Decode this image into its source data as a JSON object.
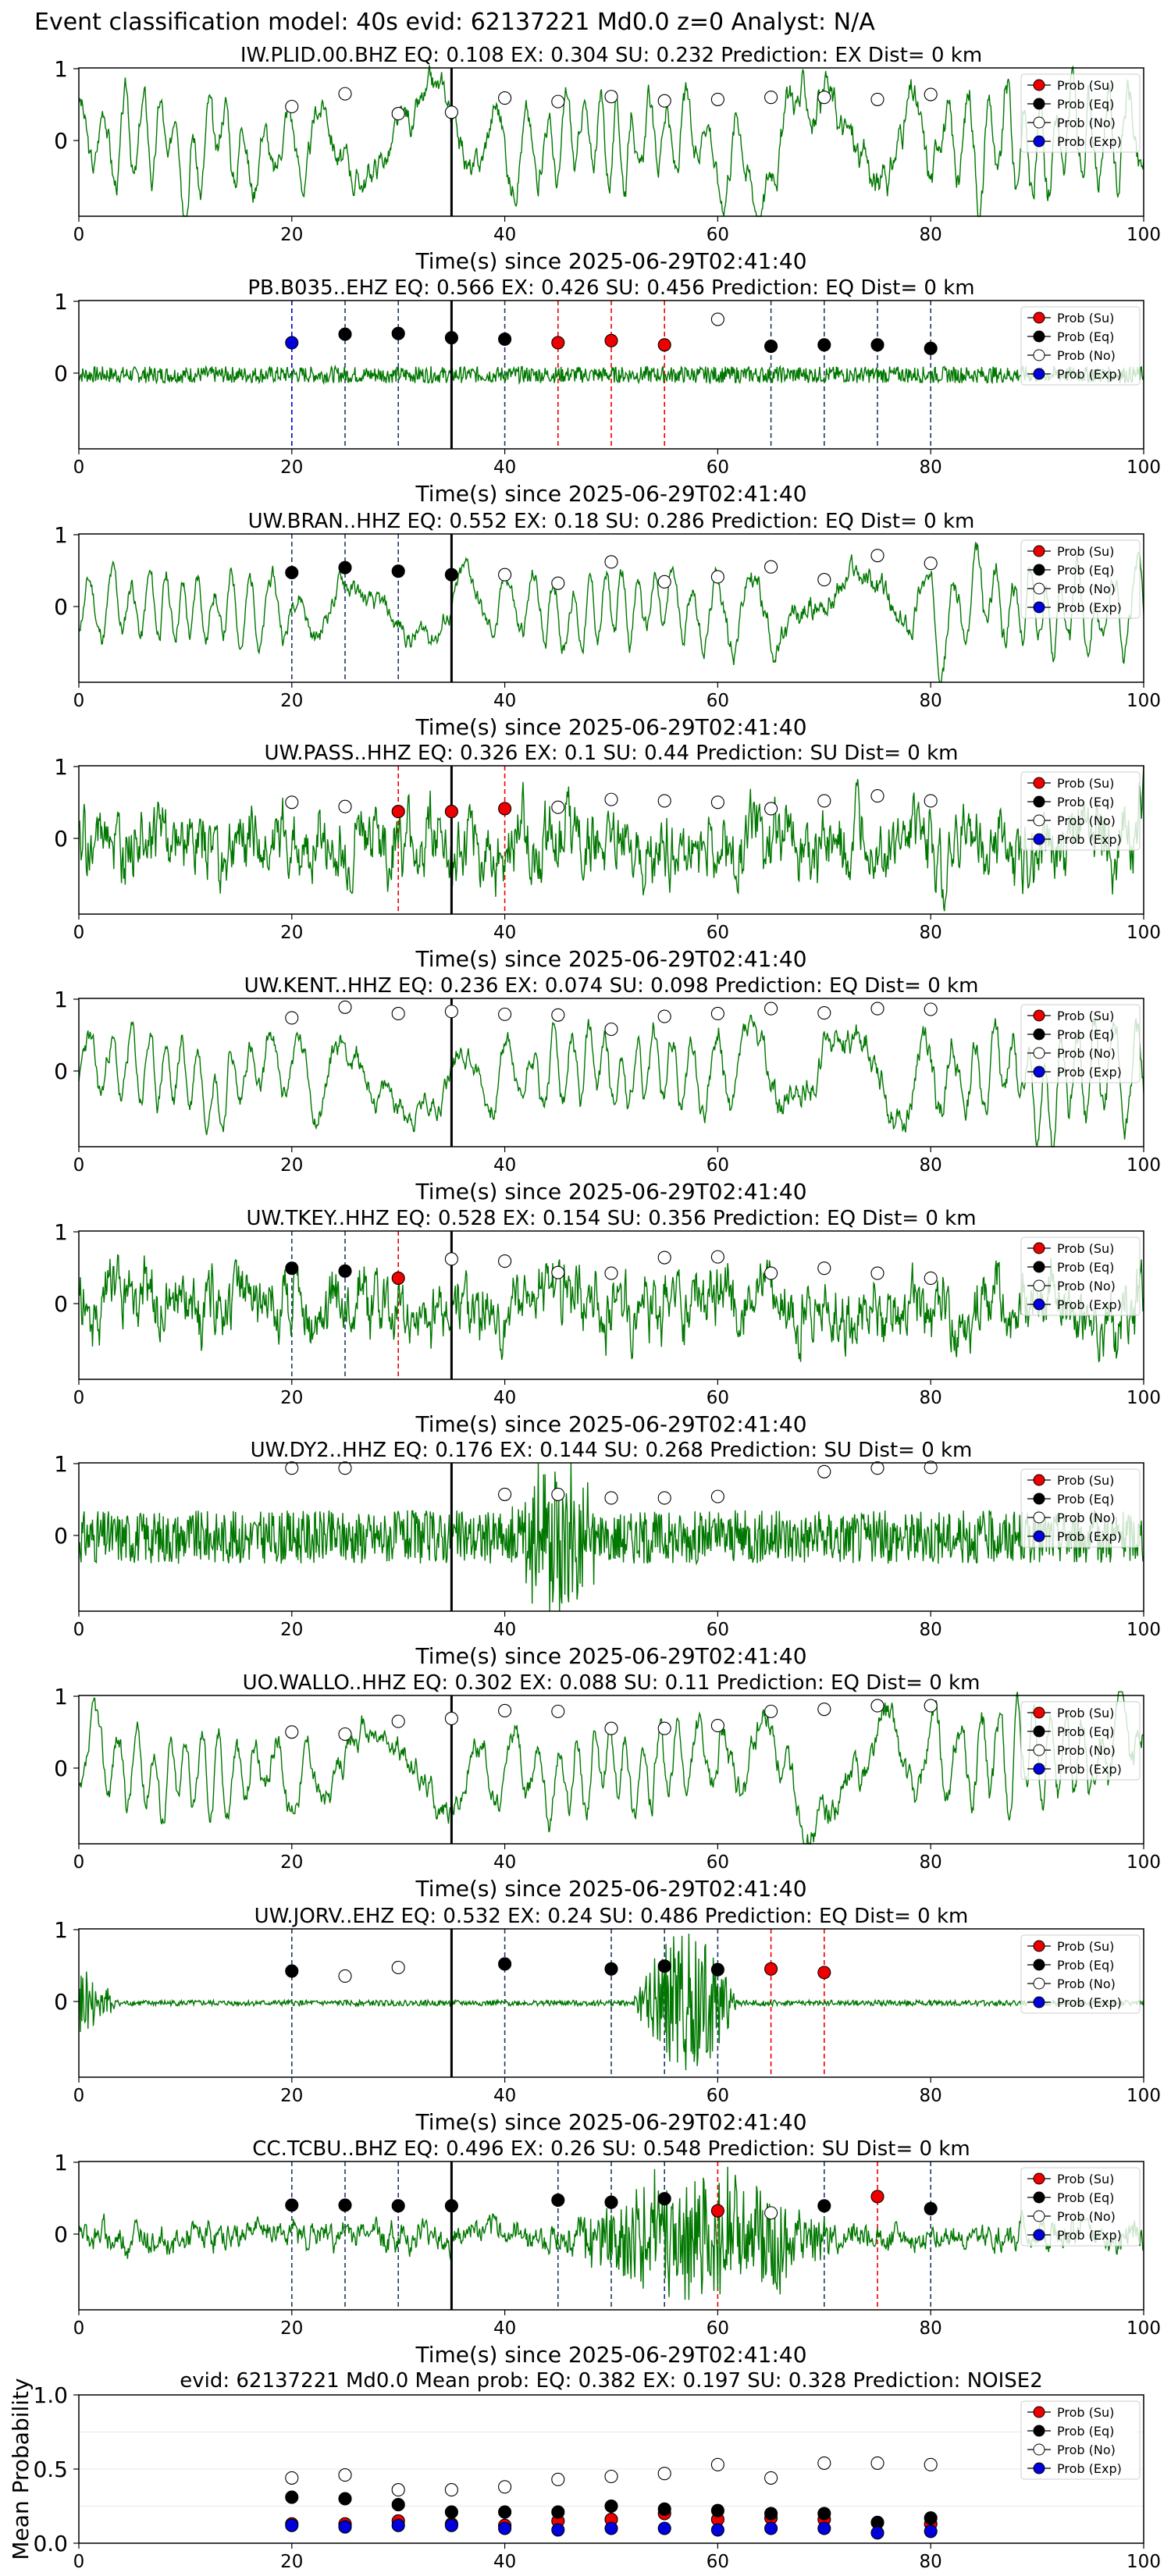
{
  "figure_title": "Event classification model: 40s evid: 62137221 Md0.0 z=0 Analyst: N/A",
  "xlabel": "Time(s) since 2025-06-29T02:41:40",
  "x_ticks": [
    "0",
    "20",
    "40",
    "60",
    "80",
    "100"
  ],
  "y_ticks": [
    "1",
    "0"
  ],
  "mean_ylabel": "Mean Probability",
  "mean_y_ticks": [
    "1.0",
    "0.5",
    "0.0"
  ],
  "legend": [
    {
      "label": "Prob (Su)",
      "color": "#ee0000",
      "stroke": "#000000"
    },
    {
      "label": "Prob (Eq)",
      "color": "#000000",
      "stroke": "#000000"
    },
    {
      "label": "Prob (No)",
      "color": "#ffffff",
      "stroke": "#000000"
    },
    {
      "label": "Prob (Exp)",
      "color": "#0000dd",
      "stroke": "#000000"
    }
  ],
  "colors": {
    "waveform": "#007700",
    "su_line": "#ee0000",
    "eq_line": "#1f3a66",
    "exp_line": "#0000cc",
    "onset": "#000000"
  },
  "chart_data": [
    {
      "type": "line",
      "title": "IW.PLID.00.BHZ   EQ: 0.108  EX: 0.304  SU: 0.232   Prediction: EX    Dist= 0 km",
      "xlim": [
        0,
        100
      ],
      "onset": 35,
      "style": "smooth",
      "amp": 0.8,
      "seed": 3,
      "points": [
        {
          "x": 20,
          "p": 0.5,
          "c": "No"
        },
        {
          "x": 25,
          "p": 0.68,
          "c": "No"
        },
        {
          "x": 30,
          "p": 0.4,
          "c": "No"
        },
        {
          "x": 35,
          "p": 0.42,
          "c": "No"
        },
        {
          "x": 40,
          "p": 0.62,
          "c": "No"
        },
        {
          "x": 45,
          "p": 0.57,
          "c": "No"
        },
        {
          "x": 50,
          "p": 0.64,
          "c": "No"
        },
        {
          "x": 55,
          "p": 0.58,
          "c": "No"
        },
        {
          "x": 60,
          "p": 0.6,
          "c": "No"
        },
        {
          "x": 65,
          "p": 0.63,
          "c": "No"
        },
        {
          "x": 70,
          "p": 0.63,
          "c": "No"
        },
        {
          "x": 75,
          "p": 0.6,
          "c": "No"
        },
        {
          "x": 80,
          "p": 0.67,
          "c": "No"
        }
      ]
    },
    {
      "type": "line",
      "title": "PB.B035..EHZ   EQ: 0.566  EX: 0.426  SU: 0.456   Prediction: EQ    Dist= 0 km",
      "xlim": [
        0,
        100
      ],
      "onset": 35,
      "style": "flat",
      "amp": 0.15,
      "seed": 7,
      "points": [
        {
          "x": 20,
          "p": 0.45,
          "c": "Exp"
        },
        {
          "x": 25,
          "p": 0.57,
          "c": "Eq"
        },
        {
          "x": 30,
          "p": 0.58,
          "c": "Eq"
        },
        {
          "x": 35,
          "p": 0.52,
          "c": "Eq"
        },
        {
          "x": 40,
          "p": 0.5,
          "c": "Eq"
        },
        {
          "x": 45,
          "p": 0.45,
          "c": "Su"
        },
        {
          "x": 50,
          "p": 0.48,
          "c": "Su"
        },
        {
          "x": 55,
          "p": 0.42,
          "c": "Su"
        },
        {
          "x": 60,
          "p": 0.78,
          "c": "No"
        },
        {
          "x": 65,
          "p": 0.4,
          "c": "Eq"
        },
        {
          "x": 70,
          "p": 0.42,
          "c": "Eq"
        },
        {
          "x": 75,
          "p": 0.42,
          "c": "Eq"
        },
        {
          "x": 80,
          "p": 0.37,
          "c": "Eq"
        }
      ]
    },
    {
      "type": "line",
      "title": "UW.BRAN..HHZ   EQ: 0.552  EX: 0.18  SU: 0.286   Prediction: EQ    Dist= 0 km",
      "xlim": [
        0,
        100
      ],
      "onset": 35,
      "style": "smooth",
      "amp": 0.6,
      "seed": 11,
      "points": [
        {
          "x": 20,
          "p": 0.5,
          "c": "Eq"
        },
        {
          "x": 25,
          "p": 0.57,
          "c": "Eq"
        },
        {
          "x": 30,
          "p": 0.52,
          "c": "Eq"
        },
        {
          "x": 35,
          "p": 0.47,
          "c": "Eq"
        },
        {
          "x": 40,
          "p": 0.47,
          "c": "No"
        },
        {
          "x": 45,
          "p": 0.35,
          "c": "No"
        },
        {
          "x": 50,
          "p": 0.65,
          "c": "No"
        },
        {
          "x": 55,
          "p": 0.37,
          "c": "No"
        },
        {
          "x": 60,
          "p": 0.44,
          "c": "No"
        },
        {
          "x": 65,
          "p": 0.58,
          "c": "No"
        },
        {
          "x": 70,
          "p": 0.4,
          "c": "No"
        },
        {
          "x": 75,
          "p": 0.74,
          "c": "No"
        },
        {
          "x": 80,
          "p": 0.63,
          "c": "No"
        }
      ]
    },
    {
      "type": "line",
      "title": "UW.PASS..HHZ   EQ: 0.326  EX: 0.1  SU: 0.44   Prediction: SU    Dist= 0 km",
      "xlim": [
        0,
        100
      ],
      "onset": 35,
      "style": "noisy",
      "amp": 0.75,
      "seed": 19,
      "points": [
        {
          "x": 20,
          "p": 0.53,
          "c": "No"
        },
        {
          "x": 25,
          "p": 0.47,
          "c": "No"
        },
        {
          "x": 30,
          "p": 0.4,
          "c": "Su"
        },
        {
          "x": 35,
          "p": 0.4,
          "c": "Su"
        },
        {
          "x": 40,
          "p": 0.44,
          "c": "Su"
        },
        {
          "x": 45,
          "p": 0.46,
          "c": "No"
        },
        {
          "x": 50,
          "p": 0.57,
          "c": "No"
        },
        {
          "x": 55,
          "p": 0.55,
          "c": "No"
        },
        {
          "x": 60,
          "p": 0.53,
          "c": "No"
        },
        {
          "x": 65,
          "p": 0.44,
          "c": "No"
        },
        {
          "x": 70,
          "p": 0.55,
          "c": "No"
        },
        {
          "x": 75,
          "p": 0.62,
          "c": "No"
        },
        {
          "x": 80,
          "p": 0.55,
          "c": "No"
        }
      ]
    },
    {
      "type": "line",
      "title": "UW.KENT..HHZ   EQ: 0.236  EX: 0.074  SU: 0.098   Prediction: EQ    Dist= 0 km",
      "xlim": [
        0,
        100
      ],
      "onset": 35,
      "style": "smooth",
      "amp": 0.7,
      "seed": 23,
      "points": [
        {
          "x": 20,
          "p": 0.77,
          "c": "No"
        },
        {
          "x": 25,
          "p": 0.92,
          "c": "No"
        },
        {
          "x": 30,
          "p": 0.83,
          "c": "No"
        },
        {
          "x": 35,
          "p": 0.86,
          "c": "No"
        },
        {
          "x": 40,
          "p": 0.82,
          "c": "No"
        },
        {
          "x": 45,
          "p": 0.81,
          "c": "No"
        },
        {
          "x": 50,
          "p": 0.61,
          "c": "No"
        },
        {
          "x": 55,
          "p": 0.79,
          "c": "No"
        },
        {
          "x": 60,
          "p": 0.83,
          "c": "No"
        },
        {
          "x": 65,
          "p": 0.9,
          "c": "No"
        },
        {
          "x": 70,
          "p": 0.84,
          "c": "No"
        },
        {
          "x": 75,
          "p": 0.9,
          "c": "No"
        },
        {
          "x": 80,
          "p": 0.89,
          "c": "No"
        }
      ]
    },
    {
      "type": "line",
      "title": "UW.TKEY..HHZ   EQ: 0.528  EX: 0.154  SU: 0.356   Prediction: EQ    Dist= 0 km",
      "xlim": [
        0,
        100
      ],
      "onset": 35,
      "style": "noisy",
      "amp": 0.7,
      "seed": 29,
      "points": [
        {
          "x": 20,
          "p": 0.52,
          "c": "Eq"
        },
        {
          "x": 25,
          "p": 0.48,
          "c": "Eq"
        },
        {
          "x": 30,
          "p": 0.38,
          "c": "Su"
        },
        {
          "x": 35,
          "p": 0.65,
          "c": "No"
        },
        {
          "x": 40,
          "p": 0.62,
          "c": "No"
        },
        {
          "x": 45,
          "p": 0.46,
          "c": "No"
        },
        {
          "x": 50,
          "p": 0.45,
          "c": "No"
        },
        {
          "x": 55,
          "p": 0.67,
          "c": "No"
        },
        {
          "x": 60,
          "p": 0.68,
          "c": "No"
        },
        {
          "x": 65,
          "p": 0.45,
          "c": "No"
        },
        {
          "x": 70,
          "p": 0.52,
          "c": "No"
        },
        {
          "x": 75,
          "p": 0.45,
          "c": "No"
        },
        {
          "x": 80,
          "p": 0.38,
          "c": "No"
        }
      ]
    },
    {
      "type": "line",
      "title": "UW.DY2..HHZ   EQ: 0.176  EX: 0.144  SU: 0.268   Prediction: SU    Dist= 0 km",
      "xlim": [
        0,
        100
      ],
      "onset": 35,
      "style": "dense",
      "amp": 0.45,
      "seed": 31,
      "burst": [
        40,
        50,
        1.0
      ],
      "points": [
        {
          "x": 20,
          "p": 0.97,
          "c": "No"
        },
        {
          "x": 25,
          "p": 0.97,
          "c": "No"
        },
        {
          "x": 40,
          "p": 0.6,
          "c": "No"
        },
        {
          "x": 45,
          "p": 0.6,
          "c": "No"
        },
        {
          "x": 50,
          "p": 0.55,
          "c": "No"
        },
        {
          "x": 55,
          "p": 0.55,
          "c": "No"
        },
        {
          "x": 60,
          "p": 0.57,
          "c": "No"
        },
        {
          "x": 70,
          "p": 0.92,
          "c": "No"
        },
        {
          "x": 75,
          "p": 0.97,
          "c": "No"
        },
        {
          "x": 80,
          "p": 0.98,
          "c": "No"
        }
      ]
    },
    {
      "type": "line",
      "title": "UO.WALLO..HHZ   EQ: 0.302  EX: 0.088  SU: 0.11   Prediction: EQ    Dist= 0 km",
      "xlim": [
        0,
        100
      ],
      "onset": 35,
      "style": "smooth",
      "amp": 0.75,
      "seed": 37,
      "points": [
        {
          "x": 20,
          "p": 0.53,
          "c": "No"
        },
        {
          "x": 25,
          "p": 0.5,
          "c": "No"
        },
        {
          "x": 30,
          "p": 0.68,
          "c": "No"
        },
        {
          "x": 35,
          "p": 0.72,
          "c": "No"
        },
        {
          "x": 40,
          "p": 0.83,
          "c": "No"
        },
        {
          "x": 45,
          "p": 0.82,
          "c": "No"
        },
        {
          "x": 50,
          "p": 0.58,
          "c": "No"
        },
        {
          "x": 55,
          "p": 0.58,
          "c": "No"
        },
        {
          "x": 60,
          "p": 0.62,
          "c": "No"
        },
        {
          "x": 65,
          "p": 0.82,
          "c": "No"
        },
        {
          "x": 70,
          "p": 0.85,
          "c": "No"
        },
        {
          "x": 75,
          "p": 0.9,
          "c": "No"
        },
        {
          "x": 80,
          "p": 0.9,
          "c": "No"
        }
      ]
    },
    {
      "type": "line",
      "title": "UW.JORV..EHZ   EQ: 0.532  EX: 0.24  SU: 0.486   Prediction: EQ    Dist= 0 km",
      "xlim": [
        0,
        100
      ],
      "onset": 35,
      "style": "flat",
      "amp": 0.05,
      "seed": 41,
      "burst": [
        52,
        62,
        1.0
      ],
      "startburst": true,
      "points": [
        {
          "x": 20,
          "p": 0.45,
          "c": "Eq"
        },
        {
          "x": 25,
          "p": 0.38,
          "c": "No"
        },
        {
          "x": 30,
          "p": 0.5,
          "c": "No"
        },
        {
          "x": 40,
          "p": 0.55,
          "c": "Eq"
        },
        {
          "x": 50,
          "p": 0.48,
          "c": "Eq"
        },
        {
          "x": 55,
          "p": 0.52,
          "c": "Eq"
        },
        {
          "x": 60,
          "p": 0.47,
          "c": "Eq"
        },
        {
          "x": 65,
          "p": 0.48,
          "c": "Su"
        },
        {
          "x": 70,
          "p": 0.43,
          "c": "Su"
        }
      ]
    },
    {
      "type": "line",
      "title": "CC.TCBU..BHZ   EQ: 0.496  EX: 0.26  SU: 0.548   Prediction: SU    Dist= 0 km",
      "xlim": [
        0,
        100
      ],
      "onset": 35,
      "style": "noisy",
      "amp": 0.3,
      "seed": 43,
      "burst": [
        45,
        72,
        0.8
      ],
      "points": [
        {
          "x": 20,
          "p": 0.43,
          "c": "Eq"
        },
        {
          "x": 25,
          "p": 0.43,
          "c": "Eq"
        },
        {
          "x": 30,
          "p": 0.42,
          "c": "Eq"
        },
        {
          "x": 35,
          "p": 0.42,
          "c": "Eq"
        },
        {
          "x": 45,
          "p": 0.5,
          "c": "Eq"
        },
        {
          "x": 50,
          "p": 0.47,
          "c": "Eq"
        },
        {
          "x": 55,
          "p": 0.52,
          "c": "Eq"
        },
        {
          "x": 60,
          "p": 0.35,
          "c": "Su"
        },
        {
          "x": 65,
          "p": 0.32,
          "c": "No"
        },
        {
          "x": 70,
          "p": 0.42,
          "c": "Eq"
        },
        {
          "x": 75,
          "p": 0.55,
          "c": "Su"
        },
        {
          "x": 80,
          "p": 0.38,
          "c": "Eq"
        }
      ]
    }
  ],
  "mean_chart": {
    "type": "scatter",
    "title": "evid: 62137221   Md0.0   Mean prob:   EQ: 0.382  EX: 0.197  SU: 0.328   Prediction: NOISE2",
    "xlim": [
      0,
      100
    ],
    "ylim": [
      0,
      1
    ],
    "x": [
      20,
      25,
      30,
      35,
      40,
      45,
      50,
      55,
      60,
      65,
      70,
      75,
      80
    ],
    "series": [
      {
        "name": "Prob (Su)",
        "c": "Su",
        "values": [
          0.13,
          0.13,
          0.15,
          0.13,
          0.12,
          0.15,
          0.16,
          0.2,
          0.16,
          0.17,
          0.16,
          0.14,
          0.13
        ]
      },
      {
        "name": "Prob (Eq)",
        "c": "Eq",
        "values": [
          0.31,
          0.3,
          0.26,
          0.21,
          0.21,
          0.21,
          0.25,
          0.23,
          0.22,
          0.2,
          0.2,
          0.14,
          0.17
        ]
      },
      {
        "name": "Prob (No)",
        "c": "No",
        "values": [
          0.44,
          0.46,
          0.36,
          0.36,
          0.38,
          0.43,
          0.45,
          0.47,
          0.53,
          0.44,
          0.54,
          0.54,
          0.53
        ]
      },
      {
        "name": "Prob (Exp)",
        "c": "Exp",
        "values": [
          0.12,
          0.11,
          0.12,
          0.12,
          0.1,
          0.09,
          0.1,
          0.1,
          0.09,
          0.1,
          0.1,
          0.07,
          0.08
        ]
      }
    ]
  }
}
